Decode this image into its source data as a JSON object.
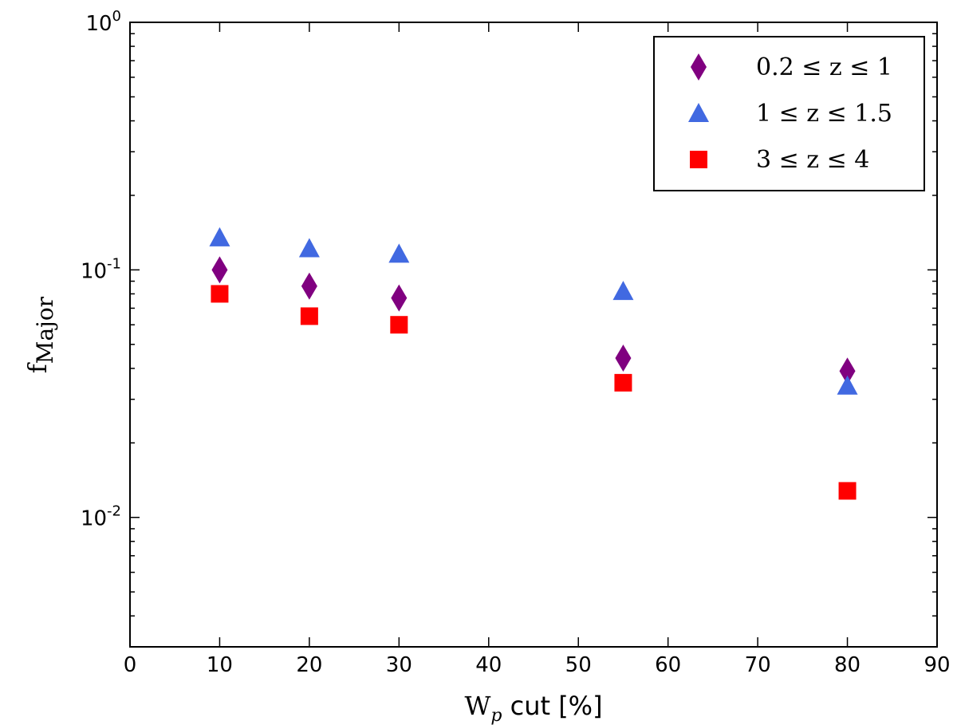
{
  "chart_data": {
    "type": "scatter",
    "title": "",
    "xlabel": "W_p cut [%]",
    "xlabel_parts": {
      "main": "W",
      "sub": "p",
      "rest": " cut [%]"
    },
    "ylabel": "f_Major",
    "ylabel_parts": {
      "main": "f",
      "sub": "Major"
    },
    "xlim": [
      0,
      90
    ],
    "ylim": [
      0.003,
      1
    ],
    "yscale": "log",
    "xticks": [
      0,
      10,
      20,
      30,
      40,
      50,
      60,
      70,
      80,
      90
    ],
    "xtick_labels": [
      "0",
      "10",
      "20",
      "30",
      "40",
      "50",
      "60",
      "70",
      "80",
      "90"
    ],
    "yticks_major": [
      {
        "value": 0.01,
        "base": "10",
        "exp": "-2"
      },
      {
        "value": 0.1,
        "base": "10",
        "exp": "-1"
      },
      {
        "value": 1,
        "base": "10",
        "exp": "0"
      }
    ],
    "grid": false,
    "legend_position": "top-right",
    "series": [
      {
        "name": "0.2 ≤ z ≤ 1",
        "marker": "diamond",
        "color": "#800080",
        "x": [
          10,
          20,
          30,
          55,
          80
        ],
        "y": [
          0.1,
          0.086,
          0.077,
          0.044,
          0.039
        ]
      },
      {
        "name": "1 ≤ z ≤ 1.5",
        "marker": "triangle",
        "color": "#4169e1",
        "x": [
          10,
          20,
          30,
          55,
          80
        ],
        "y": [
          0.135,
          0.122,
          0.116,
          0.082,
          0.034
        ]
      },
      {
        "name": "3 ≤ z ≤ 4",
        "marker": "square",
        "color": "#ff0000",
        "x": [
          10,
          20,
          30,
          55,
          80
        ],
        "y": [
          0.08,
          0.065,
          0.06,
          0.035,
          0.0128
        ]
      }
    ]
  }
}
